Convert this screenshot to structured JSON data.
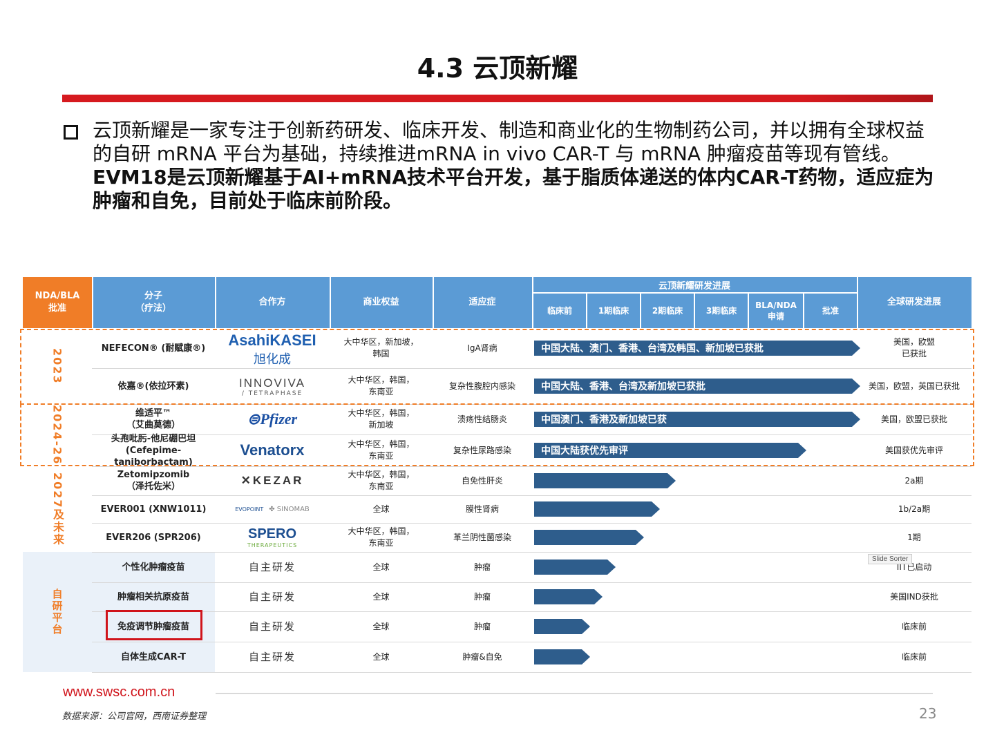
{
  "title": "4.3 云顶新耀",
  "intro": {
    "normal": "云顶新耀是一家专注于创新药研发、临床开发、制造和商业化的生物制药公司，并以拥有全球权益的自研 mRNA 平台为基础，持续推进mRNA in vivo CAR-T 与 mRNA 肿瘤疫苗等现有管线。",
    "bold": "EVM18是云顶新耀基于AI+mRNA技术平台开发，基于脂质体递送的体内CAR-T药物，适应症为肿瘤和自免，目前处于临床前阶段。"
  },
  "table": {
    "headers": {
      "approval": "NDA/BLA\n批准",
      "molecule": "分子\n（疗法）",
      "partner": "合作方",
      "rights": "商业权益",
      "indication": "适应症",
      "progress": "云顶新耀研发进展",
      "global": "全球研发进展"
    },
    "stages": [
      "临床前",
      "1期临床",
      "2期临床",
      "3期临床",
      "BLA/NDA\n申请",
      "批准"
    ],
    "year_labels": [
      "2023",
      "2024-26",
      "2027及未来",
      "自研平台"
    ],
    "rows": [
      {
        "molecule": "NEFECON® (耐赋康®)",
        "partner_logo": "AsahiKASEI 旭化成",
        "rights": "大中华区，新加坡，\n韩国",
        "indication": "IgA肾病",
        "progress_label": "中国大陆、澳门、香港、台湾及韩国、新加坡已获批",
        "progress": 1.0,
        "global": "美国，欧盟\n已获批"
      },
      {
        "molecule": "依嘉®(依拉环素)",
        "partner_logo": "INNOVIVA TETRAPHASE",
        "rights": "大中华区，韩国，\n东南亚",
        "indication": "复杂性腹腔内感染",
        "progress_label": "中国大陆、香港、台湾及新加坡已获批",
        "progress": 1.0,
        "global": "美国，欧盟，英国已获批"
      },
      {
        "molecule": "维适平™\n（艾曲莫德）",
        "partner_logo": "Pfizer",
        "rights": "大中华区，韩国，\n新加坡",
        "indication": "溃疡性结肠炎",
        "progress_label": "中国澳门、香港及新加坡已获",
        "progress": 1.0,
        "global": "美国，欧盟已获批"
      },
      {
        "molecule": "头孢吡肟-他尼硼巴坦\n(Cefepime-taniborbactam)",
        "partner_logo": "Venatorx",
        "rights": "大中华区，韩国，\n东南亚",
        "indication": "复杂性尿路感染",
        "progress_label": "中国大陆获优先审评",
        "progress": 0.83,
        "global": "美国获优先审评"
      },
      {
        "molecule": "Zetomipzomib\n（泽托佐米）",
        "partner_logo": "KEZAR",
        "rights": "大中华区，韩国，\n东南亚",
        "indication": "自免性肝炎",
        "progress_label": "",
        "progress": 0.42,
        "global": "2a期"
      },
      {
        "molecule": "EVER001 (XNW1011)",
        "partner_logo": "EVOPOINT SINOMAB",
        "rights": "全球",
        "indication": "膜性肾病",
        "progress_label": "",
        "progress": 0.37,
        "global": "1b/2a期"
      },
      {
        "molecule": "EVER206 (SPR206)",
        "partner_logo": "SPERO THERAPEUTICS",
        "rights": "大中华区，韩国，\n东南亚",
        "indication": "革兰阴性菌感染",
        "progress_label": "",
        "progress": 0.32,
        "global": "1期"
      },
      {
        "molecule": "个性化肿瘤疫苗",
        "partner": "自主研发",
        "rights": "全球",
        "indication": "肿瘤",
        "progress_label": "",
        "progress": 0.23,
        "global": "IIT已启动"
      },
      {
        "molecule": "肿瘤相关抗原疫苗",
        "partner": "自主研发",
        "rights": "全球",
        "indication": "肿瘤",
        "progress_label": "",
        "progress": 0.19,
        "global": "美国IND获批"
      },
      {
        "molecule": "免疫调节肿瘤疫苗",
        "partner": "自主研发",
        "rights": "全球",
        "indication": "肿瘤",
        "progress_label": "",
        "progress": 0.15,
        "global": "临床前"
      },
      {
        "molecule": "自体生成CAR-T",
        "partner": "自主研发",
        "rights": "全球",
        "indication": "肿瘤&自免",
        "progress_label": "",
        "progress": 0.15,
        "global": "临床前"
      }
    ]
  },
  "tooltip": "Slide Sorter",
  "footer": {
    "url": "www.swsc.com.cn",
    "source": "数据来源：公司官网，西南证券整理",
    "page": "23"
  },
  "colors": {
    "accent_red": "#d61a1f",
    "header_blue": "#5b9bd5",
    "header_orange": "#f07d27",
    "arrow_navy": "#2e5d8c"
  }
}
